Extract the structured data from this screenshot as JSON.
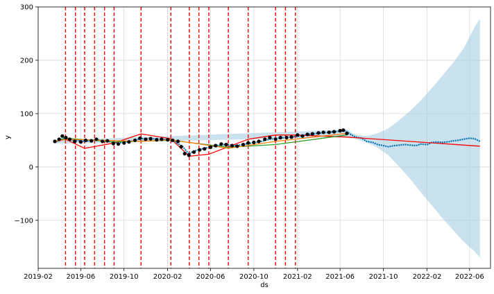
{
  "chart_data": {
    "type": "line",
    "title": "",
    "xlabel": "ds",
    "ylabel": "y",
    "xlim": [
      "2019-02-01",
      "2022-07-30"
    ],
    "ylim": [
      -190,
      300
    ],
    "grid": true,
    "x_ticks": [
      {
        "date": "2019-02-01",
        "label": "2019-02"
      },
      {
        "date": "2019-06-01",
        "label": "2019-06"
      },
      {
        "date": "2019-10-01",
        "label": "2019-10"
      },
      {
        "date": "2020-02-01",
        "label": "2020-02"
      },
      {
        "date": "2020-06-01",
        "label": "2020-06"
      },
      {
        "date": "2020-10-01",
        "label": "2020-10"
      },
      {
        "date": "2021-02-01",
        "label": "2021-02"
      },
      {
        "date": "2021-06-01",
        "label": "2021-06"
      },
      {
        "date": "2021-10-01",
        "label": "2021-10"
      },
      {
        "date": "2022-02-01",
        "label": "2022-02"
      },
      {
        "date": "2022-06-01",
        "label": "2022-06"
      }
    ],
    "y_ticks": [
      {
        "value": -100,
        "label": "−100"
      },
      {
        "value": 0,
        "label": "0"
      },
      {
        "value": 100,
        "label": "100"
      },
      {
        "value": 200,
        "label": "200"
      },
      {
        "value": 300,
        "label": "300"
      }
    ],
    "changepoints": [
      "2019-04-19",
      "2019-05-17",
      "2019-06-12",
      "2019-07-10",
      "2019-08-07",
      "2019-09-03",
      "2019-11-18",
      "2020-02-10",
      "2020-04-02",
      "2020-04-29",
      "2020-05-27",
      "2020-07-21",
      "2020-09-15",
      "2020-12-01",
      "2020-12-29",
      "2021-01-26"
    ],
    "series": [
      {
        "name": "observed",
        "style": "points",
        "color": "#000000",
        "x": [
          "2019-03-20",
          "2019-04-01",
          "2019-04-10",
          "2019-04-20",
          "2019-05-01",
          "2019-05-15",
          "2019-06-01",
          "2019-06-15",
          "2019-07-01",
          "2019-07-15",
          "2019-08-01",
          "2019-08-15",
          "2019-09-01",
          "2019-09-15",
          "2019-10-01",
          "2019-10-15",
          "2019-11-01",
          "2019-11-15",
          "2019-12-01",
          "2019-12-15",
          "2020-01-01",
          "2020-01-15",
          "2020-02-01",
          "2020-02-15",
          "2020-03-01",
          "2020-03-10",
          "2020-03-20",
          "2020-04-01",
          "2020-04-15",
          "2020-05-01",
          "2020-05-15",
          "2020-06-01",
          "2020-06-15",
          "2020-07-01",
          "2020-07-15",
          "2020-08-01",
          "2020-08-15",
          "2020-09-01",
          "2020-09-15",
          "2020-10-01",
          "2020-10-15",
          "2020-11-01",
          "2020-11-15",
          "2020-12-01",
          "2020-12-15",
          "2021-01-01",
          "2021-01-15",
          "2021-02-01",
          "2021-02-15",
          "2021-03-01",
          "2021-03-15",
          "2021-04-01",
          "2021-04-15",
          "2021-05-01",
          "2021-05-15",
          "2021-06-01",
          "2021-06-10",
          "2021-06-20"
        ],
        "y": [
          48,
          52,
          58,
          55,
          52,
          48,
          47,
          50,
          49,
          52,
          48,
          49,
          44,
          43,
          45,
          47,
          50,
          54,
          52,
          53,
          51,
          52,
          51,
          50,
          48,
          38,
          25,
          22,
          28,
          32,
          34,
          37,
          40,
          43,
          42,
          40,
          39,
          42,
          45,
          46,
          48,
          52,
          55,
          52,
          55,
          55,
          56,
          60,
          58,
          61,
          62,
          64,
          65,
          65,
          66,
          68,
          69,
          63
        ]
      },
      {
        "name": "forecast yhat",
        "style": "line",
        "color": "#0072B2",
        "x": [
          "2019-03-20",
          "2019-04-15",
          "2019-05-15",
          "2019-06-15",
          "2019-07-15",
          "2019-08-15",
          "2019-09-15",
          "2019-10-15",
          "2019-11-15",
          "2019-12-15",
          "2020-01-15",
          "2020-02-15",
          "2020-03-15",
          "2020-04-01",
          "2020-04-15",
          "2020-05-15",
          "2020-06-15",
          "2020-07-15",
          "2020-08-15",
          "2020-09-15",
          "2020-10-15",
          "2020-11-15",
          "2020-12-15",
          "2021-01-15",
          "2021-02-15",
          "2021-03-15",
          "2021-04-15",
          "2021-05-15",
          "2021-06-15",
          "2021-07-01",
          "2021-07-15",
          "2021-08-01",
          "2021-08-15",
          "2021-09-01",
          "2021-09-15",
          "2021-10-01",
          "2021-10-15",
          "2021-11-01",
          "2021-11-15",
          "2021-12-01",
          "2021-12-15",
          "2022-01-01",
          "2022-01-15",
          "2022-02-01",
          "2022-02-15",
          "2022-03-01",
          "2022-03-15",
          "2022-04-01",
          "2022-04-15",
          "2022-05-01",
          "2022-05-15",
          "2022-06-01",
          "2022-06-15",
          "2022-06-30"
        ],
        "y": [
          47,
          54,
          50,
          48,
          51,
          48,
          45,
          47,
          53,
          53,
          52,
          50,
          38,
          24,
          30,
          35,
          40,
          42,
          40,
          44,
          47,
          52,
          54,
          56,
          59,
          62,
          64,
          66,
          68,
          61,
          56,
          54,
          48,
          46,
          42,
          40,
          38,
          40,
          41,
          42,
          41,
          40,
          43,
          42,
          46,
          47,
          46,
          47,
          49,
          50,
          52,
          54,
          53,
          48
        ]
      },
      {
        "name": "yhat upper",
        "style": "band_upper",
        "color": "#A6CEE3",
        "x": [
          "2019-03-20",
          "2021-06-20",
          "2021-07-15",
          "2021-08-15",
          "2021-09-15",
          "2021-10-15",
          "2021-11-15",
          "2021-12-15",
          "2022-01-15",
          "2022-02-15",
          "2022-03-15",
          "2022-04-15",
          "2022-05-15",
          "2022-06-15",
          "2022-06-30"
        ],
        "y": [
          50,
          70,
          60,
          58,
          63,
          72,
          88,
          105,
          125,
          148,
          170,
          195,
          222,
          262,
          278
        ]
      },
      {
        "name": "yhat lower",
        "style": "band_lower",
        "color": "#A6CEE3",
        "x": [
          "2019-03-20",
          "2021-06-20",
          "2021-07-15",
          "2021-08-15",
          "2021-09-15",
          "2021-10-15",
          "2021-11-15",
          "2021-12-15",
          "2022-01-15",
          "2022-02-15",
          "2022-03-15",
          "2022-04-15",
          "2022-05-15",
          "2022-06-15",
          "2022-06-30"
        ],
        "y": [
          44,
          56,
          52,
          46,
          36,
          22,
          0,
          -22,
          -48,
          -72,
          -95,
          -118,
          -140,
          -158,
          -170
        ]
      },
      {
        "name": "trend",
        "style": "line",
        "color": "#FF0000",
        "x": [
          "2019-03-20",
          "2019-04-19",
          "2019-06-12",
          "2019-09-03",
          "2019-11-18",
          "2020-02-10",
          "2020-04-02",
          "2020-05-27",
          "2020-09-15",
          "2020-12-01",
          "2021-01-26",
          "2021-06-20",
          "2022-06-30"
        ],
        "y": [
          47,
          52,
          35,
          45,
          62,
          53,
          20,
          24,
          52,
          60,
          60,
          56,
          39
        ]
      },
      {
        "name": "trend (green)",
        "style": "line",
        "color": "#2CA02C",
        "x": [
          "2019-03-20",
          "2019-04-19",
          "2019-09-03",
          "2020-02-10",
          "2020-07-21",
          "2020-12-01",
          "2021-06-20"
        ],
        "y": [
          47,
          54,
          47,
          50,
          37,
          42,
          60
        ]
      },
      {
        "name": "trend (orange)",
        "style": "line",
        "color": "#FF7F0E",
        "x": [
          "2019-03-20",
          "2019-04-19",
          "2019-11-18",
          "2020-02-10",
          "2020-07-21",
          "2020-12-01",
          "2021-06-20"
        ],
        "y": [
          48,
          52,
          48,
          51,
          35,
          48,
          63
        ]
      }
    ]
  }
}
